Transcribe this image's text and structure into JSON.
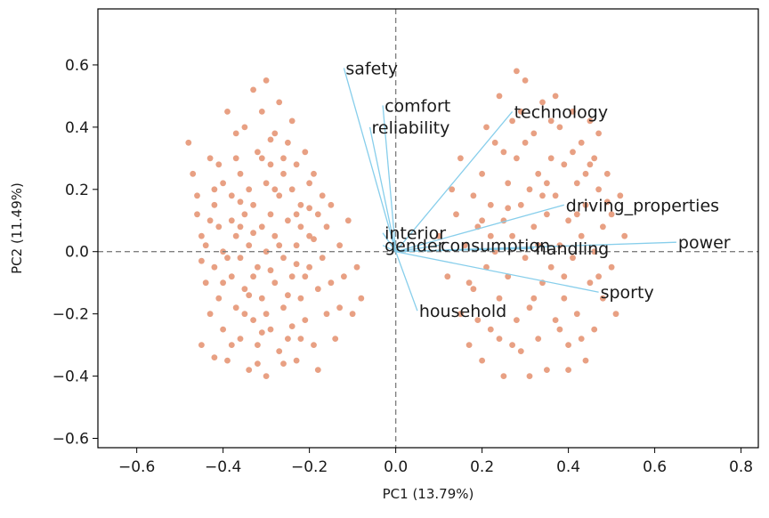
{
  "chart_data": {
    "type": "scatter",
    "title": "",
    "xlabel": "PC1 (13.79%)",
    "ylabel": "PC2 (11.49%)",
    "xlim": [
      -0.69,
      0.84
    ],
    "ylim": [
      -0.63,
      0.78
    ],
    "xticks": [
      -0.6,
      -0.4,
      -0.2,
      0.0,
      0.2,
      0.4,
      0.6,
      0.8
    ],
    "yticks": [
      -0.6,
      -0.4,
      -0.2,
      0.0,
      0.2,
      0.4,
      0.6
    ],
    "xtick_labels": [
      "−0.6",
      "−0.4",
      "−0.2",
      "0.0",
      "0.2",
      "0.4",
      "0.6",
      "0.8"
    ],
    "ytick_labels": [
      "0.6",
      "0.4",
      "0.2",
      "0.0",
      "−0.2",
      "−0.4",
      "−0.6"
    ],
    "reference_lines": {
      "x": 0,
      "y": 0,
      "style": "dashed",
      "color": "#808080"
    },
    "point_color": "#E8A083",
    "arrow_color": "#87CEEB",
    "grid": false,
    "points": [
      [
        -0.48,
        0.35
      ],
      [
        -0.47,
        0.25
      ],
      [
        -0.46,
        0.18
      ],
      [
        -0.46,
        0.12
      ],
      [
        -0.45,
        0.05
      ],
      [
        -0.45,
        -0.03
      ],
      [
        -0.44,
        -0.1
      ],
      [
        -0.44,
        0.02
      ],
      [
        -0.43,
        0.3
      ],
      [
        -0.43,
        -0.2
      ],
      [
        -0.42,
        0.15
      ],
      [
        -0.42,
        -0.05
      ],
      [
        -0.42,
        -0.34
      ],
      [
        -0.41,
        0.08
      ],
      [
        -0.41,
        -0.15
      ],
      [
        -0.4,
        0.22
      ],
      [
        -0.4,
        -0.25
      ],
      [
        -0.4,
        0.0
      ],
      [
        -0.39,
        0.45
      ],
      [
        -0.39,
        -0.35
      ],
      [
        -0.38,
        0.18
      ],
      [
        -0.38,
        -0.08
      ],
      [
        -0.38,
        0.1
      ],
      [
        -0.37,
        0.3
      ],
      [
        -0.37,
        -0.18
      ],
      [
        -0.37,
        0.05
      ],
      [
        -0.36,
        0.25
      ],
      [
        -0.36,
        -0.28
      ],
      [
        -0.36,
        -0.02
      ],
      [
        -0.35,
        0.12
      ],
      [
        -0.35,
        0.4
      ],
      [
        -0.35,
        -0.12
      ],
      [
        -0.34,
        0.2
      ],
      [
        -0.34,
        -0.38
      ],
      [
        -0.34,
        0.02
      ],
      [
        -0.33,
        0.52
      ],
      [
        -0.33,
        -0.22
      ],
      [
        -0.33,
        0.15
      ],
      [
        -0.32,
        0.32
      ],
      [
        -0.32,
        -0.05
      ],
      [
        -0.32,
        -0.3
      ],
      [
        -0.31,
        0.08
      ],
      [
        -0.31,
        0.45
      ],
      [
        -0.31,
        -0.15
      ],
      [
        -0.3,
        0.22
      ],
      [
        -0.3,
        0.55
      ],
      [
        -0.3,
        -0.4
      ],
      [
        -0.3,
        0.0
      ],
      [
        -0.29,
        0.28
      ],
      [
        -0.29,
        -0.25
      ],
      [
        -0.29,
        0.12
      ],
      [
        -0.28,
        0.38
      ],
      [
        -0.28,
        -0.1
      ],
      [
        -0.28,
        0.05
      ],
      [
        -0.27,
        0.18
      ],
      [
        -0.27,
        -0.32
      ],
      [
        -0.27,
        0.48
      ],
      [
        -0.26,
        0.25
      ],
      [
        -0.26,
        -0.18
      ],
      [
        -0.26,
        -0.02
      ],
      [
        -0.25,
        0.1
      ],
      [
        -0.25,
        0.35
      ],
      [
        -0.25,
        -0.28
      ],
      [
        -0.24,
        0.2
      ],
      [
        -0.24,
        -0.08
      ],
      [
        -0.24,
        0.42
      ],
      [
        -0.23,
        0.02
      ],
      [
        -0.23,
        -0.35
      ],
      [
        -0.23,
        0.28
      ],
      [
        -0.22,
        0.15
      ],
      [
        -0.22,
        -0.15
      ],
      [
        -0.22,
        0.08
      ],
      [
        -0.21,
        0.32
      ],
      [
        -0.21,
        -0.22
      ],
      [
        -0.2,
        0.22
      ],
      [
        -0.2,
        -0.05
      ],
      [
        -0.2,
        0.05
      ],
      [
        -0.19,
        -0.3
      ],
      [
        -0.19,
        0.25
      ],
      [
        -0.18,
        0.12
      ],
      [
        -0.18,
        -0.12
      ],
      [
        -0.18,
        -0.38
      ],
      [
        -0.17,
        0.18
      ],
      [
        -0.17,
        -0.02
      ],
      [
        -0.16,
        -0.2
      ],
      [
        -0.16,
        0.08
      ],
      [
        -0.15,
        -0.1
      ],
      [
        -0.15,
        0.15
      ],
      [
        -0.14,
        -0.28
      ],
      [
        -0.13,
        0.02
      ],
      [
        -0.13,
        -0.18
      ],
      [
        -0.12,
        -0.08
      ],
      [
        -0.11,
        0.1
      ],
      [
        -0.1,
        -0.2
      ],
      [
        -0.09,
        -0.05
      ],
      [
        -0.08,
        -0.15
      ],
      [
        -0.41,
        0.28
      ],
      [
        -0.39,
        -0.02
      ],
      [
        -0.37,
        0.38
      ],
      [
        -0.35,
        -0.2
      ],
      [
        -0.33,
        0.06
      ],
      [
        -0.31,
        0.3
      ],
      [
        -0.29,
        -0.06
      ],
      [
        -0.27,
        0.02
      ],
      [
        -0.25,
        -0.14
      ],
      [
        -0.23,
        0.12
      ],
      [
        -0.21,
        -0.08
      ],
      [
        -0.38,
        -0.3
      ],
      [
        -0.34,
        -0.14
      ],
      [
        -0.3,
        -0.2
      ],
      [
        -0.26,
        0.3
      ],
      [
        -0.22,
        -0.28
      ],
      [
        -0.45,
        -0.3
      ],
      [
        -0.43,
        0.1
      ],
      [
        -0.36,
        0.08
      ],
      [
        -0.32,
        -0.36
      ],
      [
        -0.28,
        0.2
      ],
      [
        -0.24,
        -0.24
      ],
      [
        -0.2,
        0.14
      ],
      [
        -0.4,
        -0.1
      ],
      [
        -0.36,
        0.16
      ],
      [
        -0.33,
        -0.08
      ],
      [
        -0.29,
        0.36
      ],
      [
        -0.26,
        -0.36
      ],
      [
        -0.23,
        -0.04
      ],
      [
        -0.19,
        0.04
      ],
      [
        -0.42,
        0.2
      ],
      [
        -0.31,
        -0.26
      ],
      [
        0.1,
        0.05
      ],
      [
        0.12,
        -0.08
      ],
      [
        0.14,
        0.12
      ],
      [
        0.15,
        -0.2
      ],
      [
        0.16,
        0.02
      ],
      [
        0.17,
        -0.3
      ],
      [
        0.18,
        0.18
      ],
      [
        0.18,
        -0.12
      ],
      [
        0.19,
        0.08
      ],
      [
        0.2,
        -0.35
      ],
      [
        0.2,
        0.25
      ],
      [
        0.21,
        -0.05
      ],
      [
        0.22,
        0.15
      ],
      [
        0.22,
        -0.25
      ],
      [
        0.23,
        0.35
      ],
      [
        0.23,
        0.0
      ],
      [
        0.24,
        -0.15
      ],
      [
        0.24,
        0.5
      ],
      [
        0.25,
        0.1
      ],
      [
        0.25,
        -0.4
      ],
      [
        0.26,
        0.22
      ],
      [
        0.26,
        -0.08
      ],
      [
        0.27,
        0.42
      ],
      [
        0.27,
        0.05
      ],
      [
        0.28,
        -0.22
      ],
      [
        0.28,
        0.3
      ],
      [
        0.29,
        0.15
      ],
      [
        0.29,
        -0.32
      ],
      [
        0.3,
        0.55
      ],
      [
        0.3,
        -0.02
      ],
      [
        0.31,
        0.2
      ],
      [
        0.31,
        -0.18
      ],
      [
        0.32,
        0.38
      ],
      [
        0.32,
        0.08
      ],
      [
        0.33,
        -0.28
      ],
      [
        0.33,
        0.25
      ],
      [
        0.34,
        -0.1
      ],
      [
        0.34,
        0.48
      ],
      [
        0.35,
        0.12
      ],
      [
        0.35,
        -0.38
      ],
      [
        0.36,
        0.3
      ],
      [
        0.36,
        -0.05
      ],
      [
        0.37,
        0.18
      ],
      [
        0.37,
        -0.22
      ],
      [
        0.38,
        0.4
      ],
      [
        0.38,
        0.02
      ],
      [
        0.39,
        -0.15
      ],
      [
        0.39,
        0.28
      ],
      [
        0.4,
        0.1
      ],
      [
        0.4,
        -0.3
      ],
      [
        0.41,
        0.45
      ],
      [
        0.41,
        -0.02
      ],
      [
        0.42,
        0.22
      ],
      [
        0.42,
        -0.2
      ],
      [
        0.43,
        0.35
      ],
      [
        0.43,
        0.05
      ],
      [
        0.44,
        -0.35
      ],
      [
        0.44,
        0.15
      ],
      [
        0.45,
        -0.1
      ],
      [
        0.45,
        0.28
      ],
      [
        0.46,
        0.0
      ],
      [
        0.46,
        -0.25
      ],
      [
        0.47,
        0.2
      ],
      [
        0.47,
        0.38
      ],
      [
        0.48,
        -0.15
      ],
      [
        0.48,
        0.08
      ],
      [
        0.49,
        0.25
      ],
      [
        0.5,
        -0.05
      ],
      [
        0.5,
        0.12
      ],
      [
        0.51,
        -0.2
      ],
      [
        0.52,
        0.18
      ],
      [
        0.53,
        0.05
      ],
      [
        0.13,
        0.2
      ],
      [
        0.15,
        0.3
      ],
      [
        0.17,
        -0.1
      ],
      [
        0.19,
        -0.22
      ],
      [
        0.21,
        0.4
      ],
      [
        0.25,
        0.32
      ],
      [
        0.27,
        -0.3
      ],
      [
        0.29,
        0.45
      ],
      [
        0.31,
        -0.4
      ],
      [
        0.33,
        0.02
      ],
      [
        0.35,
        0.22
      ],
      [
        0.37,
        0.5
      ],
      [
        0.39,
        -0.08
      ],
      [
        0.41,
        0.32
      ],
      [
        0.43,
        -0.28
      ],
      [
        0.45,
        0.42
      ],
      [
        0.47,
        -0.08
      ],
      [
        0.49,
        0.16
      ],
      [
        0.22,
        0.05
      ],
      [
        0.26,
        0.14
      ],
      [
        0.3,
        0.35
      ],
      [
        0.34,
        0.18
      ],
      [
        0.38,
        -0.25
      ],
      [
        0.42,
        0.12
      ],
      [
        0.46,
        0.3
      ],
      [
        0.24,
        -0.28
      ],
      [
        0.28,
        0.58
      ],
      [
        0.32,
        -0.15
      ],
      [
        0.36,
        0.42
      ],
      [
        0.4,
        -0.38
      ],
      [
        0.44,
        0.25
      ],
      [
        0.2,
        0.1
      ]
    ],
    "loadings": [
      {
        "name": "safety",
        "x": -0.12,
        "y": 0.59
      },
      {
        "name": "comfort",
        "x": -0.03,
        "y": 0.47
      },
      {
        "name": "reliability",
        "x": -0.06,
        "y": 0.4
      },
      {
        "name": "technology",
        "x": 0.27,
        "y": 0.45
      },
      {
        "name": "driving_properties",
        "x": 0.39,
        "y": 0.15
      },
      {
        "name": "power",
        "x": 0.65,
        "y": 0.03
      },
      {
        "name": "interior",
        "x": -0.03,
        "y": 0.06
      },
      {
        "name": "gender",
        "x": -0.03,
        "y": 0.02
      },
      {
        "name": "consumption",
        "x": 0.1,
        "y": 0.02
      },
      {
        "name": "handling",
        "x": 0.32,
        "y": 0.01
      },
      {
        "name": "sporty",
        "x": 0.47,
        "y": -0.13
      },
      {
        "name": "household",
        "x": 0.05,
        "y": -0.19
      }
    ]
  }
}
